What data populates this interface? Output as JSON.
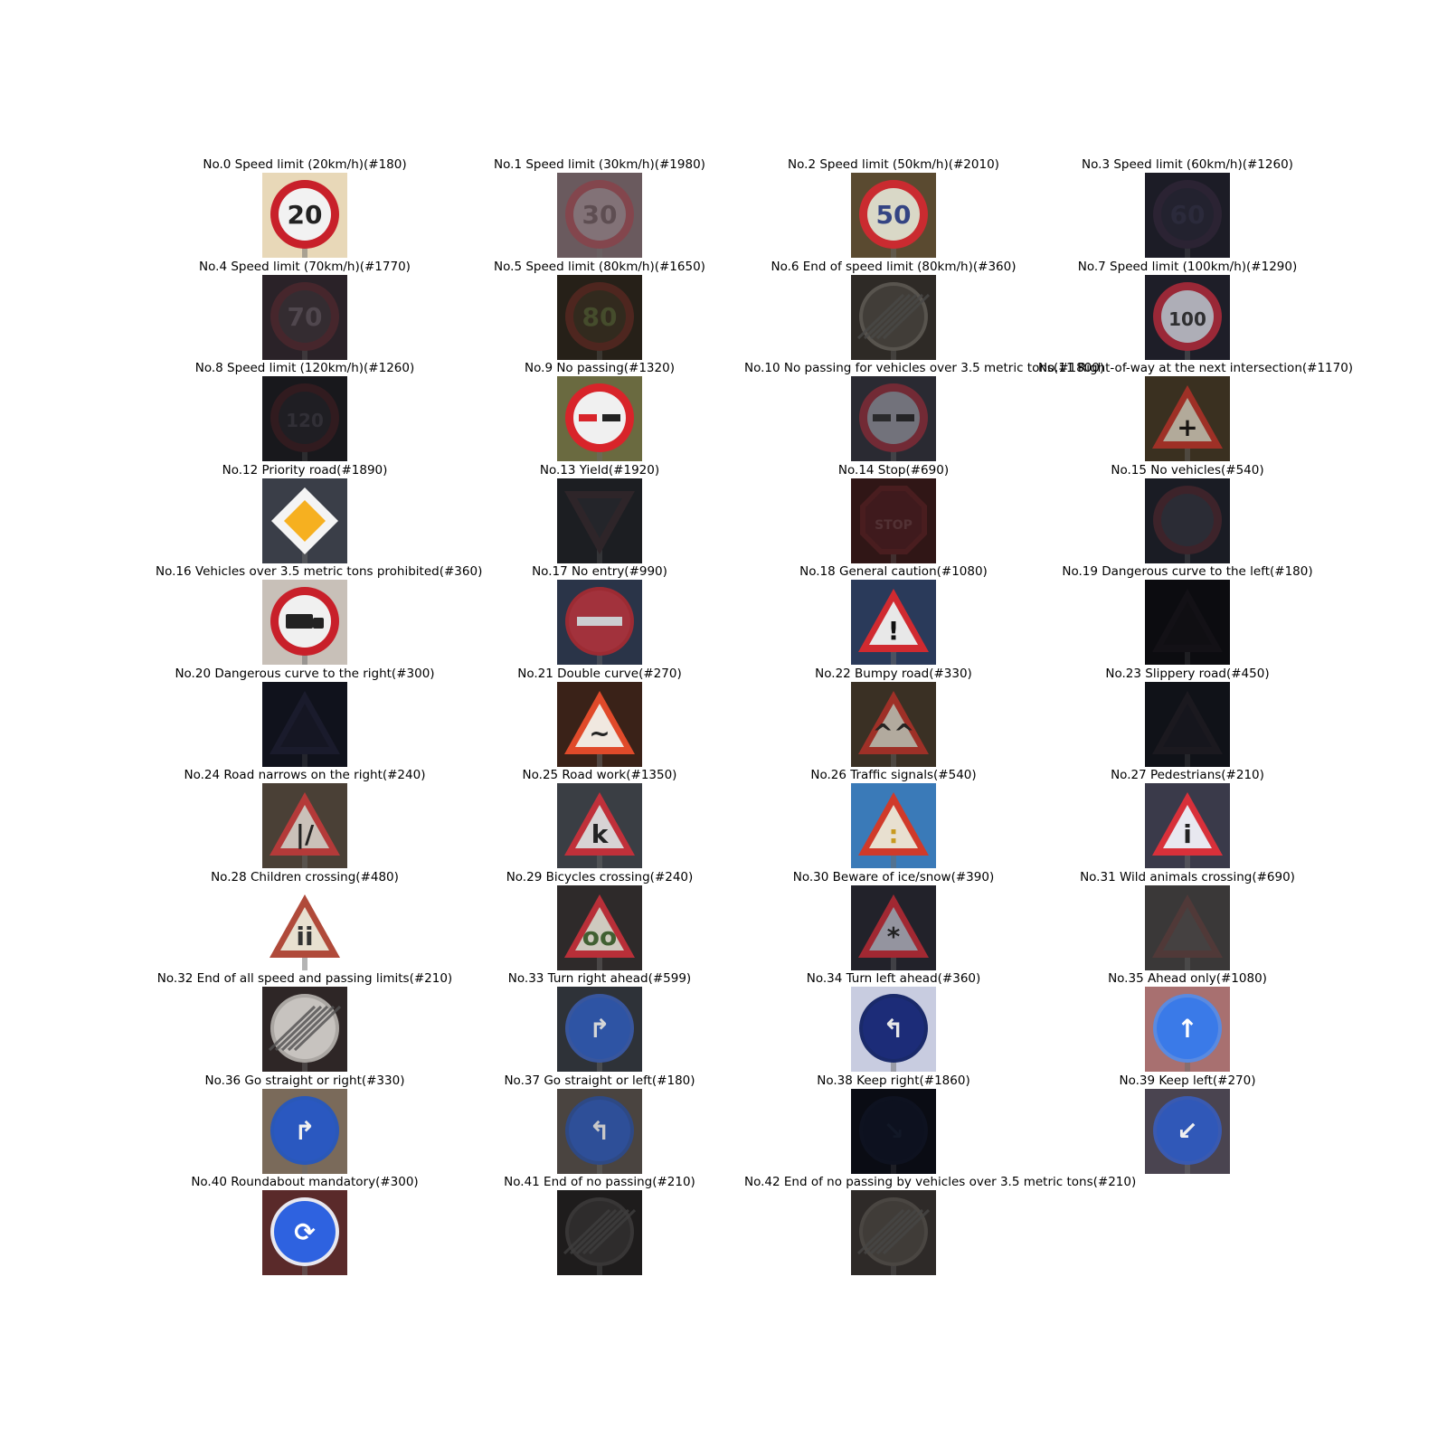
{
  "figure": {
    "columns": 4,
    "samples": [
      {
        "title": "No.0 Speed limit (20km/h)(#180)",
        "bg": "#e8d8b8",
        "sign": "circle",
        "rim": "#c8202a",
        "fill": "#f2f2f2",
        "glyph": "20",
        "glyph_color": "#222222",
        "dim": 1.0
      },
      {
        "title": "No.1 Speed limit (30km/h)(#1980)",
        "bg": "#6a5a5e",
        "sign": "circle",
        "rim": "#8c4048",
        "fill": "#8a7a80",
        "glyph": "30",
        "glyph_color": "#5a4a4e",
        "dim": 0.75
      },
      {
        "title": "No.2 Speed limit (50km/h)(#2010)",
        "bg": "#5a4a30",
        "sign": "circle",
        "rim": "#d02a30",
        "fill": "#e0e0d0",
        "glyph": "50",
        "glyph_color": "#334488",
        "dim": 0.95
      },
      {
        "title": "No.3 Speed limit (60km/h)(#1260)",
        "bg": "#1c1c26",
        "sign": "circle",
        "rim": "#3a2a40",
        "fill": "#2a2838",
        "glyph": "60",
        "glyph_color": "#3a3850",
        "dim": 0.5
      },
      {
        "title": "No.4 Speed limit (70km/h)(#1770)",
        "bg": "#2a2228",
        "sign": "circle",
        "rim": "#5a2a30",
        "fill": "#3c3438",
        "glyph": "70",
        "glyph_color": "#6a6068",
        "dim": 0.6
      },
      {
        "title": "No.5 Speed limit (80km/h)(#1650)",
        "bg": "#262018",
        "sign": "circle",
        "rim": "#6a2a24",
        "fill": "#3a3222",
        "glyph": "80",
        "glyph_color": "#5a6a3a",
        "dim": 0.6
      },
      {
        "title": "No.6 End of speed limit (80km/h)(#360)",
        "bg": "#2e2a26",
        "sign": "circle-end",
        "rim": "#6a6660",
        "fill": "#4a4640",
        "glyph": "",
        "glyph_color": "#222222",
        "dim": 0.7
      },
      {
        "title": "No.7 Speed limit (100km/h)(#1290)",
        "bg": "#1e1e28",
        "sign": "circle",
        "rim": "#b02a3a",
        "fill": "#c8c8d0",
        "glyph": "100",
        "glyph_color": "#333333",
        "dim": 0.85
      },
      {
        "title": "No.8 Speed limit (120km/h)(#1260)",
        "bg": "#18181c",
        "sign": "circle",
        "rim": "#4a1e22",
        "fill": "#26242a",
        "glyph": "120",
        "glyph_color": "#4a4650",
        "dim": 0.5
      },
      {
        "title": "No.9 No passing(#1320)",
        "bg": "#6a6a40",
        "sign": "circle-bar",
        "rim": "#d8242a",
        "fill": "#f0f0f0",
        "glyph": "",
        "glyph_color": "#d8242a",
        "dim": 1.0
      },
      {
        "title": "No.10 No passing for vehicles over 3.5 metric tons(#1800)",
        "bg": "#2a2a32",
        "sign": "circle-bar",
        "rim": "#8a2a36",
        "fill": "#8a8a94",
        "glyph": "",
        "glyph_color": "#2a2a2a",
        "dim": 0.75
      },
      {
        "title": "No.11 Right-of-way at the next intersection(#1170)",
        "bg": "#3a3020",
        "sign": "triangle",
        "rim": "#b03028",
        "fill": "#c8c0b0",
        "glyph": "+",
        "glyph_color": "#111111",
        "dim": 0.85
      },
      {
        "title": "No.12 Priority road(#1890)",
        "bg": "#3a3e48",
        "sign": "diamond",
        "rim": "#f4f4f4",
        "fill": "#f6b020",
        "glyph": "",
        "glyph_color": "#000000",
        "dim": 1.0
      },
      {
        "title": "No.13 Yield(#1920)",
        "bg": "#1c1e22",
        "sign": "triangle-down",
        "rim": "#3a2a2e",
        "fill": "#2a2a30",
        "glyph": "",
        "glyph_color": "#000000",
        "dim": 0.6
      },
      {
        "title": "No.14 Stop(#690)",
        "bg": "#301616",
        "sign": "octagon",
        "rim": "#5a2226",
        "fill": "#4a1e22",
        "glyph": "STOP",
        "glyph_color": "#6a4448",
        "dim": 0.6
      },
      {
        "title": "No.15 No vehicles(#540)",
        "bg": "#1a1c24",
        "sign": "circle",
        "rim": "#5a2a30",
        "fill": "#3a3a44",
        "glyph": "",
        "glyph_color": "#000000",
        "dim": 0.55
      },
      {
        "title": "No.16 Vehicles over 3.5 metric tons prohibited(#360)",
        "bg": "#c8c0b8",
        "sign": "circle-truck",
        "rim": "#c8202a",
        "fill": "#f0f0f0",
        "glyph": "",
        "glyph_color": "#222222",
        "dim": 1.0
      },
      {
        "title": "No.17 No entry(#990)",
        "bg": "#2a3448",
        "sign": "circle-noentry",
        "rim": "#b02a30",
        "fill": "#b8323a",
        "glyph": "",
        "glyph_color": "#e8e8e8",
        "dim": 0.85
      },
      {
        "title": "No.18 General caution(#1080)",
        "bg": "#2a3a5a",
        "sign": "triangle",
        "rim": "#d02a30",
        "fill": "#e8e8e8",
        "glyph": "!",
        "glyph_color": "#111111",
        "dim": 1.0
      },
      {
        "title": "No.19 Dangerous curve to the left(#180)",
        "bg": "#0c0c10",
        "sign": "triangle",
        "rim": "#1e1a20",
        "fill": "#161418",
        "glyph": "",
        "glyph_color": "#000000",
        "dim": 0.4
      },
      {
        "title": "No.20 Dangerous curve to the right(#300)",
        "bg": "#10121c",
        "sign": "triangle",
        "rim": "#282840",
        "fill": "#1c1c2c",
        "glyph": "",
        "glyph_color": "#000000",
        "dim": 0.45
      },
      {
        "title": "No.21 Double curve(#270)",
        "bg": "#3a2218",
        "sign": "triangle",
        "rim": "#e04a2a",
        "fill": "#f0e8e0",
        "glyph": "~",
        "glyph_color": "#222222",
        "dim": 1.0
      },
      {
        "title": "No.22 Bumpy road(#330)",
        "bg": "#3a3024",
        "sign": "triangle",
        "rim": "#b03028",
        "fill": "#c8c0b4",
        "glyph": "^^",
        "glyph_color": "#222222",
        "dim": 0.85
      },
      {
        "title": "No.23 Slippery road(#450)",
        "bg": "#101218",
        "sign": "triangle",
        "rim": "#2a2228",
        "fill": "#1e1c24",
        "glyph": "",
        "glyph_color": "#000000",
        "dim": 0.45
      },
      {
        "title": "No.24 Road narrows on the right(#240)",
        "bg": "#4a4036",
        "sign": "triangle",
        "rim": "#c03a3a",
        "fill": "#d8d0c8",
        "glyph": "|/",
        "glyph_color": "#222222",
        "dim": 0.9
      },
      {
        "title": "No.25 Road work(#1350)",
        "bg": "#3a3e44",
        "sign": "triangle",
        "rim": "#c8303a",
        "fill": "#e0dcdc",
        "glyph": "k",
        "glyph_color": "#222222",
        "dim": 0.95
      },
      {
        "title": "No.26 Traffic signals(#540)",
        "bg": "#3a7ab8",
        "sign": "triangle",
        "rim": "#d03a2a",
        "fill": "#e8e0d0",
        "glyph": ":",
        "glyph_color": "#c89a20",
        "dim": 1.0
      },
      {
        "title": "No.27 Pedestrians(#210)",
        "bg": "#3a3a4a",
        "sign": "triangle",
        "rim": "#d8303a",
        "fill": "#e8e8f0",
        "glyph": "i",
        "glyph_color": "#222222",
        "dim": 1.0
      },
      {
        "title": "No.28 Children crossing(#480)",
        "bg": "#ffffff",
        "sign": "triangle",
        "rim": "#b04a3a",
        "fill": "#e8e0d0",
        "glyph": "ii",
        "glyph_color": "#333333",
        "dim": 1.0
      },
      {
        "title": "No.29 Bicycles crossing(#240)",
        "bg": "#2e2a2a",
        "sign": "triangle",
        "rim": "#c8303a",
        "fill": "#e0dcd0",
        "glyph": "oo",
        "glyph_color": "#446633",
        "dim": 0.9
      },
      {
        "title": "No.30 Beware of ice/snow(#390)",
        "bg": "#22222a",
        "sign": "triangle",
        "rim": "#b82a34",
        "fill": "#a8a8b4",
        "glyph": "*",
        "glyph_color": "#222222",
        "dim": 0.85
      },
      {
        "title": "No.31 Wild animals crossing(#690)",
        "bg": "#3a3838",
        "sign": "triangle",
        "rim": "#5a3a38",
        "fill": "#4a4646",
        "glyph": "",
        "glyph_color": "#000000",
        "dim": 0.7
      },
      {
        "title": "No.32 End of all speed and passing limits(#210)",
        "bg": "#2e2626",
        "sign": "circle-end",
        "rim": "#b8b4b0",
        "fill": "#d8d4d0",
        "glyph": "",
        "glyph_color": "#222222",
        "dim": 0.9
      },
      {
        "title": "No.33 Turn right ahead(#599)",
        "bg": "#2e3238",
        "sign": "circle-blue",
        "rim": "#3a5aa8",
        "fill": "#2e58b0",
        "glyph": "↱",
        "glyph_color": "#e8e8e8",
        "dim": 0.9
      },
      {
        "title": "No.34 Turn left ahead(#360)",
        "bg": "#c8cce0",
        "sign": "circle-blue",
        "rim": "#1a2a6a",
        "fill": "#1c2c78",
        "glyph": "↰",
        "glyph_color": "#e8e8e8",
        "dim": 1.0
      },
      {
        "title": "No.35 Ahead only(#1080)",
        "bg": "#a87070",
        "sign": "circle-blue",
        "rim": "#5a8ae0",
        "fill": "#3a7ae8",
        "glyph": "↑",
        "glyph_color": "#ffffff",
        "dim": 1.0
      },
      {
        "title": "No.36 Go straight or right(#330)",
        "bg": "#7a6a5a",
        "sign": "circle-blue",
        "rim": "#2a58b8",
        "fill": "#2a58c0",
        "glyph": "↱",
        "glyph_color": "#f0f0f0",
        "dim": 1.0
      },
      {
        "title": "No.37 Go straight or left(#180)",
        "bg": "#4a4440",
        "sign": "circle-blue",
        "rim": "#2a4a90",
        "fill": "#2a52a8",
        "glyph": "↰",
        "glyph_color": "#e0e0e0",
        "dim": 0.85
      },
      {
        "title": "No.38 Keep right(#1860)",
        "bg": "#0a0c14",
        "sign": "circle-blue",
        "rim": "#141c34",
        "fill": "#121a30",
        "glyph": "↘",
        "glyph_color": "#1e2a44",
        "dim": 0.4
      },
      {
        "title": "No.39 Keep left(#270)",
        "bg": "#4a4450",
        "sign": "circle-blue",
        "rim": "#3a5ab0",
        "fill": "#3058b8",
        "glyph": "↙",
        "glyph_color": "#f0f0f0",
        "dim": 1.0
      },
      {
        "title": "No.40 Roundabout mandatory(#300)",
        "bg": "#5a2a2a",
        "sign": "circle-blue",
        "rim": "#e8e8f0",
        "fill": "#2e62e0",
        "glyph": "⟳",
        "glyph_color": "#ffffff",
        "dim": 1.0
      },
      {
        "title": "No.41 End of no passing(#210)",
        "bg": "#1e1c1c",
        "sign": "circle-end",
        "rim": "#4a4848",
        "fill": "#3a3838",
        "glyph": "",
        "glyph_color": "#222222",
        "dim": 0.6
      },
      {
        "title": "No.42 End of no passing by vehicles over 3.5 metric tons(#210)",
        "bg": "#2e2a28",
        "sign": "circle-end",
        "rim": "#5a5650",
        "fill": "#4a4642",
        "glyph": "",
        "glyph_color": "#222222",
        "dim": 0.65
      }
    ]
  }
}
